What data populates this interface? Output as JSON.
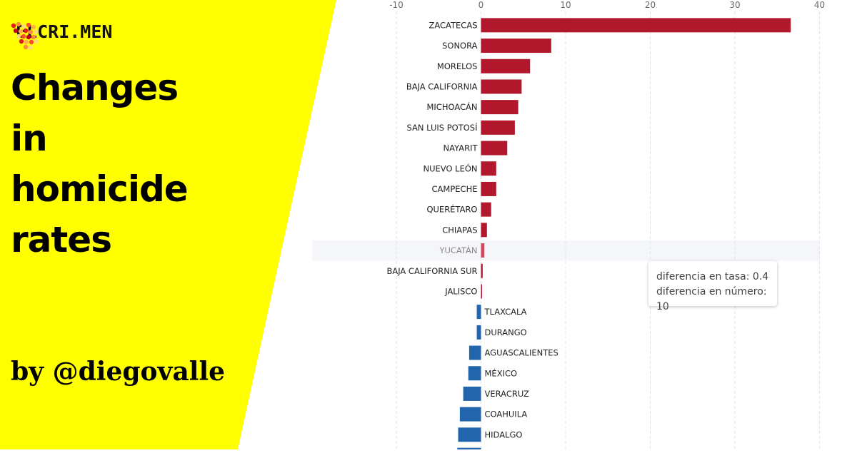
{
  "brand": {
    "name": "ELCRI.MEN"
  },
  "headline": {
    "lines": [
      "Changes",
      "in",
      "homicide",
      "rates"
    ]
  },
  "byline": "by @diegovalle",
  "tooltip": {
    "line1": "diferencia en tasa: 0.4",
    "line2": "diferencia en número: 10"
  },
  "colors": {
    "accent_yellow": "#ffff00",
    "increase": "#b2182b",
    "increase_highlight": "#d6495b",
    "decrease": "#2166ac"
  },
  "chart_data": {
    "type": "bar",
    "orientation": "horizontal",
    "xlim": [
      -10,
      40
    ],
    "x_ticks": [
      -10,
      0,
      10,
      20,
      30,
      40
    ],
    "grid": true,
    "highlighted": "YUCATÁN",
    "categories": [
      "ZACATECAS",
      "SONORA",
      "MORELOS",
      "BAJA CALIFORNIA",
      "MICHOACÁN",
      "SAN LUIS POTOSÍ",
      "NAYARIT",
      "NUEVO LEÓN",
      "CAMPECHE",
      "QUERÉTARO",
      "CHIAPAS",
      "YUCATÁN",
      "BAJA CALIFORNIA SUR",
      "JALISCO",
      "TLAXCALA",
      "DURANGO",
      "AGUASCALIENTES",
      "MÉXICO",
      "VERACRUZ",
      "COAHUILA",
      "HIDALGO"
    ],
    "values": [
      36.6,
      8.3,
      5.8,
      4.8,
      4.4,
      4.0,
      3.1,
      1.8,
      1.8,
      1.2,
      0.7,
      0.4,
      0.2,
      0.1,
      -0.5,
      -0.5,
      -1.4,
      -1.5,
      -2.1,
      -2.5,
      -2.7
    ]
  }
}
